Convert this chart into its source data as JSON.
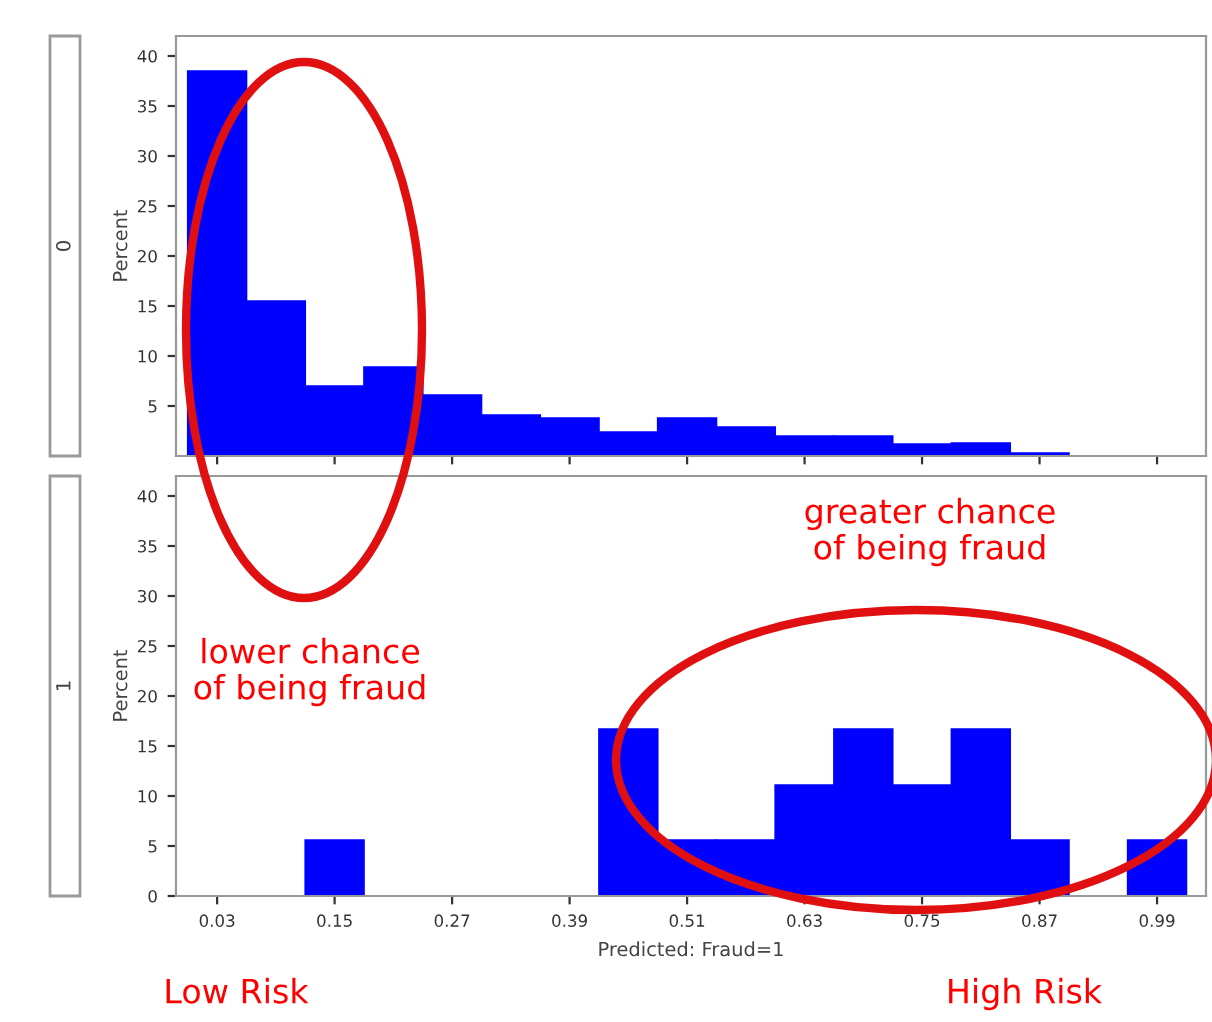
{
  "chart_data": [
    {
      "type": "histogram",
      "title": "0",
      "ylabel": "Percent",
      "color": "#0000ff",
      "tick_labels": "y",
      "bins": [
        0,
        0.06,
        0.12,
        0.18,
        0.24,
        0.3,
        0.36,
        0.42,
        0.48,
        0.54,
        0.6,
        0.66,
        0.72,
        0.78,
        0.84,
        0.9,
        0.96,
        1.02
      ],
      "values": [
        38.5,
        15.5,
        7,
        8.9,
        6.1,
        4.1,
        3.8,
        2.4,
        3.8,
        2.9,
        2,
        2,
        1.2,
        1.3,
        0.3,
        0,
        0
      ],
      "xlim": [
        -0.012,
        1.04
      ],
      "ylim": [
        0,
        42
      ],
      "yticks": [
        5,
        10,
        15,
        20,
        25,
        30,
        35,
        40
      ],
      "xticks": [
        0.03,
        0.15,
        0.27,
        0.39,
        0.51,
        0.63,
        0.75,
        0.87,
        0.99
      ]
    },
    {
      "type": "histogram",
      "title": "1",
      "ylabel": "Percent",
      "xlabel": "Predicted: Fraud=1",
      "color": "#0000ff",
      "bins": [
        0,
        0.06,
        0.12,
        0.18,
        0.24,
        0.3,
        0.36,
        0.42,
        0.48,
        0.54,
        0.6,
        0.66,
        0.72,
        0.78,
        0.84,
        0.9,
        0.96,
        1.02
      ],
      "values": [
        0,
        0,
        5.6,
        0,
        0,
        0,
        0,
        16.7,
        5.6,
        5.6,
        11.1,
        16.7,
        11.1,
        16.7,
        5.6,
        0,
        5.6
      ],
      "xlim": [
        -0.012,
        1.04
      ],
      "ylim": [
        0,
        42
      ],
      "yticks": [
        0,
        5,
        10,
        15,
        20,
        25,
        30,
        35,
        40
      ],
      "xticks": [
        0.03,
        0.15,
        0.27,
        0.39,
        0.51,
        0.63,
        0.75,
        0.87,
        0.99
      ],
      "annotations": [
        "lower chance\nof being fraud",
        "greater chance\nof being fraud",
        "Low Risk",
        "High Risk"
      ]
    }
  ]
}
